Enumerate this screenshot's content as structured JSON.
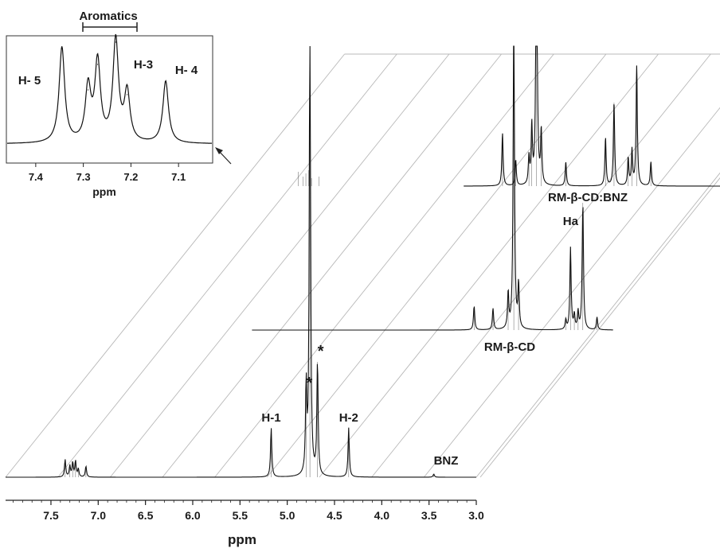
{
  "chart_data": {
    "type": "line",
    "title": "",
    "xlabel": "ppm",
    "xlim": [
      7.98,
      3.0
    ],
    "x_ticks": [
      "7.5",
      "7.0",
      "6.5",
      "6.0",
      "5.5",
      "5.0",
      "4.5",
      "4.0",
      "3.5",
      "3.0"
    ],
    "tick_values": [
      7.5,
      7.0,
      6.5,
      6.0,
      5.5,
      5.0,
      4.5,
      4.0,
      3.5,
      3.0
    ],
    "series": [
      {
        "name": "BNZ",
        "peaks": [
          {
            "ppm": 7.35,
            "height": 22
          },
          {
            "ppm": 7.3,
            "height": 14
          },
          {
            "ppm": 7.27,
            "height": 18
          },
          {
            "ppm": 7.24,
            "height": 20
          },
          {
            "ppm": 7.21,
            "height": 10
          },
          {
            "ppm": 7.13,
            "height": 14
          },
          {
            "ppm": 5.17,
            "height": 62
          },
          {
            "ppm": 4.8,
            "height": 110
          },
          {
            "ppm": 4.76,
            "height": 610
          },
          {
            "ppm": 4.68,
            "height": 145
          },
          {
            "ppm": 4.35,
            "height": 62
          },
          {
            "ppm": 3.45,
            "height": 4
          }
        ],
        "peak_labels": [
          {
            "text": "H-1",
            "ppm": 5.17
          },
          {
            "text": "*",
            "ppm": 4.8
          },
          {
            "text": "*",
            "ppm": 4.68
          },
          {
            "text": "H-2",
            "ppm": 4.35
          }
        ]
      },
      {
        "name": "RM-β-CD",
        "peaks": [
          {
            "ppm": 4.27,
            "height": 30
          },
          {
            "ppm": 4.07,
            "height": 27
          },
          {
            "ppm": 3.91,
            "height": 45
          },
          {
            "ppm": 3.85,
            "height": 420
          },
          {
            "ppm": 3.8,
            "height": 55
          },
          {
            "ppm": 3.3,
            "height": 12
          },
          {
            "ppm": 3.25,
            "height": 103
          },
          {
            "ppm": 3.21,
            "height": 18
          },
          {
            "ppm": 3.17,
            "height": 22
          },
          {
            "ppm": 3.12,
            "height": 160
          },
          {
            "ppm": 2.97,
            "height": 16
          }
        ],
        "peak_labels": [
          {
            "text": "Ha",
            "ppm": 3.25
          }
        ]
      },
      {
        "name": "RM-β-CD:BNZ",
        "peaks": [
          {
            "ppm": 7.35,
            "height": 18
          },
          {
            "ppm": 7.3,
            "height": 12
          },
          {
            "ppm": 7.27,
            "height": 16
          },
          {
            "ppm": 7.24,
            "height": 20
          },
          {
            "ppm": 7.21,
            "height": 10
          },
          {
            "ppm": 7.13,
            "height": 12
          },
          {
            "ppm": 5.19,
            "height": 66
          },
          {
            "ppm": 5.05,
            "height": 32
          },
          {
            "ppm": 4.91,
            "height": 34
          },
          {
            "ppm": 4.88,
            "height": 72
          },
          {
            "ppm": 4.83,
            "height": 400
          },
          {
            "ppm": 4.78,
            "height": 66
          },
          {
            "ppm": 4.52,
            "height": 30
          },
          {
            "ppm": 4.1,
            "height": 60
          },
          {
            "ppm": 4.01,
            "height": 105
          },
          {
            "ppm": 3.86,
            "height": 34
          },
          {
            "ppm": 3.82,
            "height": 44
          },
          {
            "ppm": 3.77,
            "height": 150
          },
          {
            "ppm": 3.62,
            "height": 30
          }
        ]
      }
    ],
    "inset": {
      "xlabel": "ppm",
      "title": "Aromatics",
      "x_ticks": [
        "7.4",
        "7.3",
        "7.2",
        "7.1"
      ],
      "tick_values": [
        7.4,
        7.3,
        7.2,
        7.1
      ],
      "xlim": [
        7.46,
        7.03
      ],
      "peaks": [
        {
          "ppm": 7.345,
          "height": 120
        },
        {
          "ppm": 7.29,
          "height": 68
        },
        {
          "ppm": 7.27,
          "height": 100
        },
        {
          "ppm": 7.232,
          "height": 128
        },
        {
          "ppm": 7.208,
          "height": 62
        },
        {
          "ppm": 7.127,
          "height": 78
        }
      ],
      "peak_labels": [
        {
          "text": "H- 5",
          "ppm": 7.345
        },
        {
          "text": "H-3",
          "ppm": 7.232
        },
        {
          "text": "H- 4",
          "ppm": 7.127
        }
      ]
    }
  }
}
